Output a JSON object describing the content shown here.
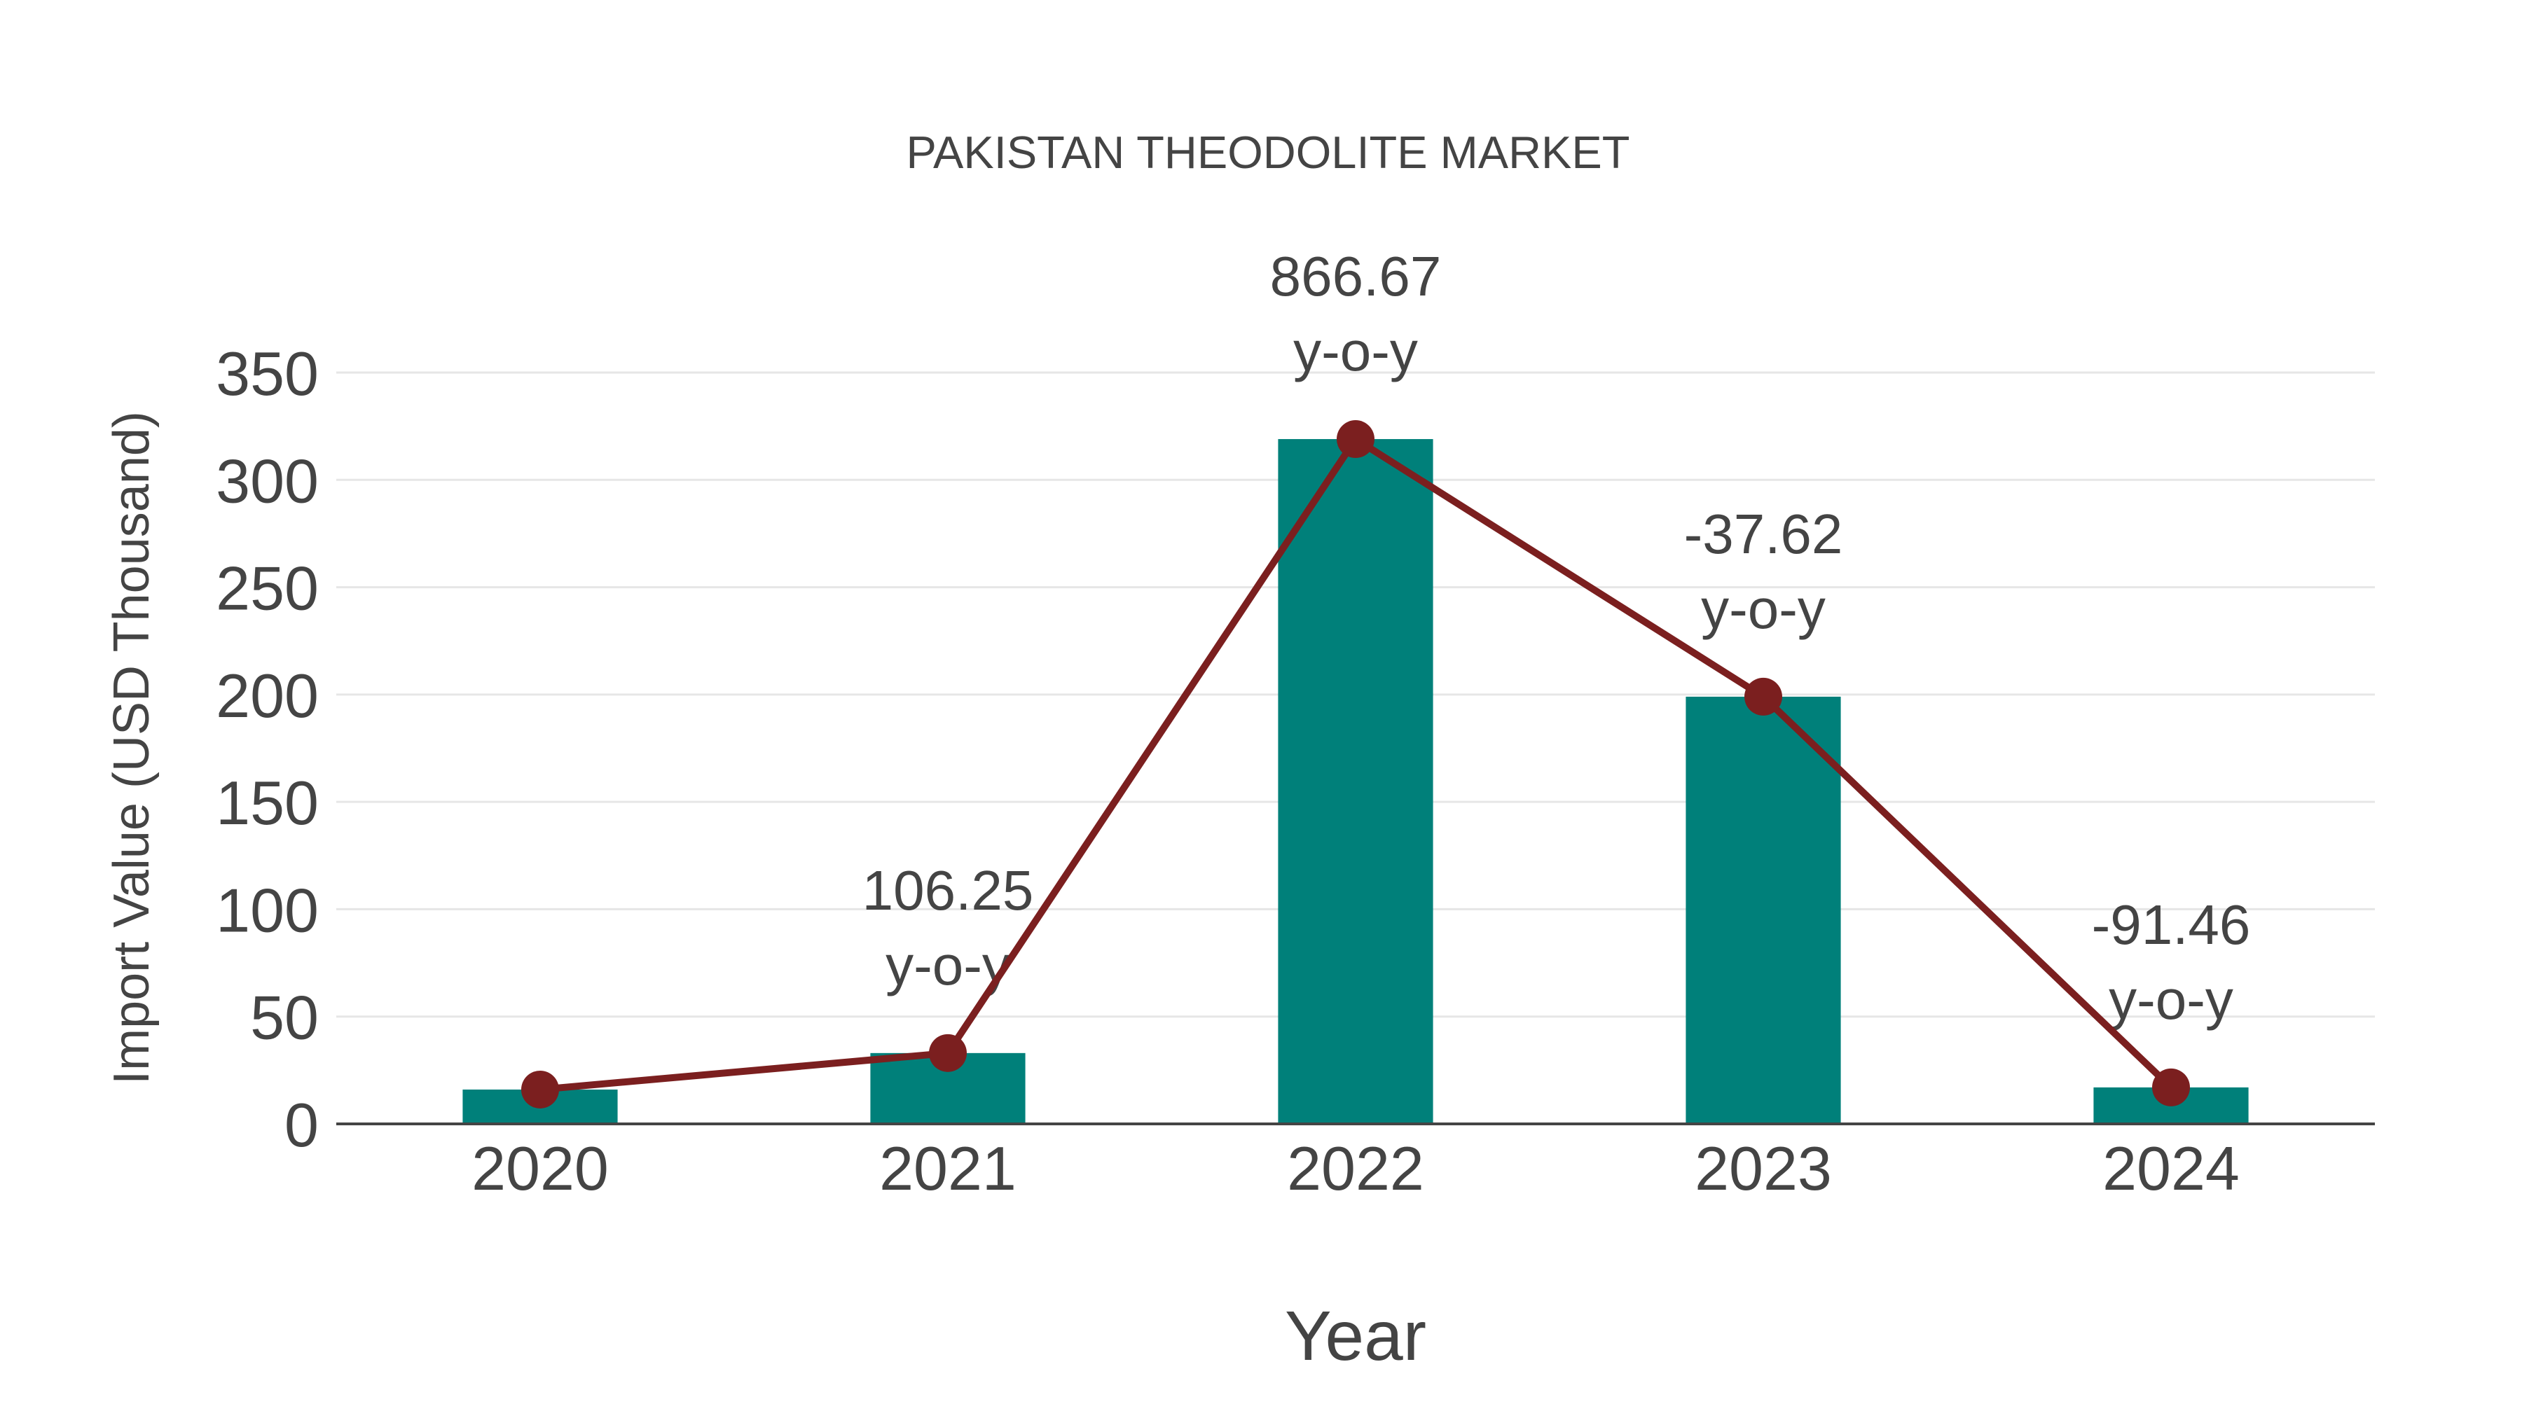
{
  "chart_data": {
    "type": "bar+line",
    "title": "PAKISTAN THEODOLITE MARKET",
    "xlabel": "Year",
    "ylabel": "Import Value (USD Thousand)",
    "categories": [
      "2020",
      "2021",
      "2022",
      "2023",
      "2024"
    ],
    "series": [
      {
        "name": "Import Value",
        "type": "bar",
        "color": "#00807A",
        "values": [
          16,
          33,
          319,
          199,
          17
        ]
      },
      {
        "name": "Import Value (trend)",
        "type": "line",
        "color": "#7B1F1F",
        "values": [
          16,
          33,
          319,
          199,
          17
        ]
      }
    ],
    "annotations": [
      {
        "category": "2021",
        "value": "106.25",
        "suffix": "y-o-y"
      },
      {
        "category": "2022",
        "value": "866.67",
        "suffix": "y-o-y"
      },
      {
        "category": "2023",
        "value": "-37.62",
        "suffix": "y-o-y"
      },
      {
        "category": "2024",
        "value": "-91.46",
        "suffix": "y-o-y"
      }
    ],
    "yticks": [
      0,
      50,
      100,
      150,
      200,
      250,
      300,
      350
    ],
    "ylim": [
      0,
      350
    ],
    "grid": true,
    "legend": "none"
  },
  "colors": {
    "bar": "#00807A",
    "line": "#7B1F1F",
    "text": "#444444",
    "grid": "#e6e6e6"
  }
}
